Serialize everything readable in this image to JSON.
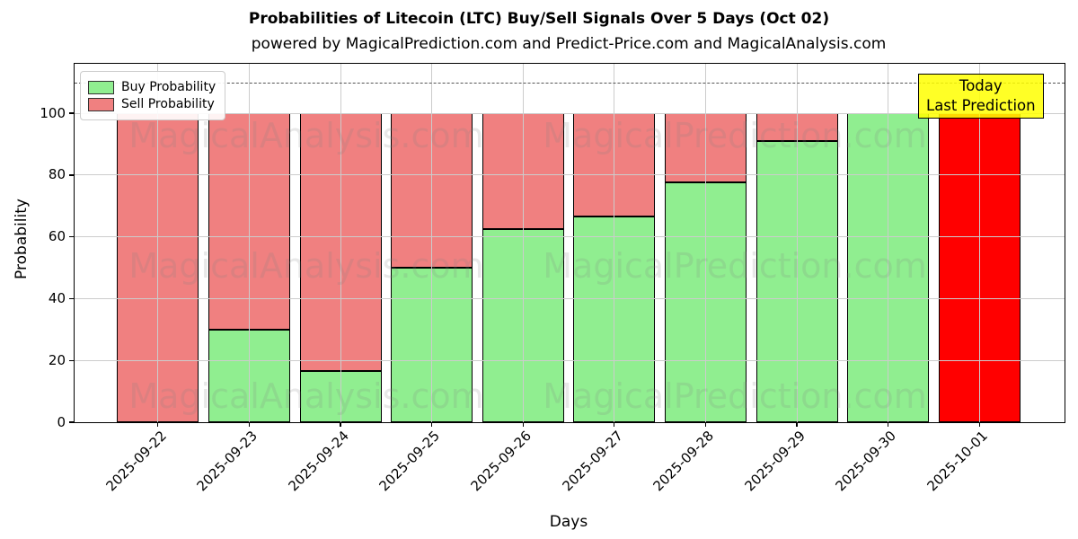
{
  "figure": {
    "title": "Probabilities of Litecoin (LTC) Buy/Sell Signals Over 5 Days (Oct 02)",
    "subtitle": "powered by MagicalPrediction.com and Predict-Price.com and MagicalAnalysis.com"
  },
  "axes": {
    "xlabel": "Days",
    "ylabel": "Probability",
    "ytick_labels": [
      "0",
      "20",
      "40",
      "60",
      "80",
      "100"
    ]
  },
  "legend": {
    "items": [
      {
        "label": "Buy Probability",
        "color": "#90ee90"
      },
      {
        "label": "Sell Probability",
        "color": "#f08080"
      }
    ]
  },
  "annotation": {
    "line1": "Today",
    "line2": "Last Prediction",
    "bg_color": "#ffff00",
    "border_color": "#000000"
  },
  "watermarks": {
    "left": "MagicalAnalysis.com",
    "right": "MagicalPrediction.com"
  },
  "chart_data": {
    "type": "bar",
    "stacked": true,
    "title": "Probabilities of Litecoin (LTC) Buy/Sell Signals Over 5 Days (Oct 02)",
    "xlabel": "Days",
    "ylabel": "Probability",
    "categories": [
      "2025-09-22",
      "2025-09-23",
      "2025-09-24",
      "2025-09-25",
      "2025-09-26",
      "2025-09-27",
      "2025-09-28",
      "2025-09-29",
      "2025-09-30",
      "2025-10-01"
    ],
    "series": [
      {
        "name": "Buy Probability",
        "color": "#90ee90",
        "values": [
          0,
          30,
          16.5,
          50,
          62.5,
          66.5,
          77.5,
          91,
          100,
          0
        ]
      },
      {
        "name": "Sell Probability",
        "color": "#f08080",
        "values": [
          100,
          70,
          83.5,
          50,
          37.5,
          33.5,
          22.5,
          9,
          0,
          0
        ]
      },
      {
        "name": "Today Last Prediction",
        "color": "#ff0000",
        "values": [
          0,
          0,
          0,
          0,
          0,
          0,
          0,
          0,
          0,
          100
        ]
      }
    ],
    "ylim": [
      0,
      116
    ],
    "yticks": [
      0,
      20,
      40,
      60,
      80,
      100
    ],
    "reference_line_y": 110,
    "grid": true,
    "legend_position": "upper left"
  }
}
